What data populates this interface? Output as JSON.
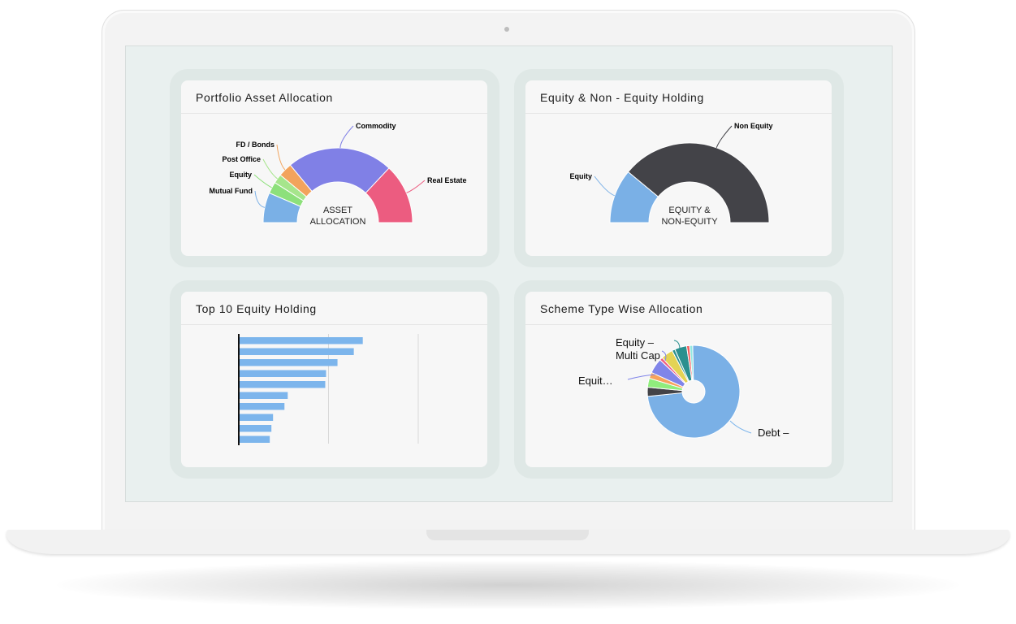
{
  "cards": [
    {
      "title": "Portfolio Asset Allocation",
      "center_label": [
        "ASSET",
        "ALLOCATION"
      ],
      "chart_data": {
        "type": "pie",
        "title": "Portfolio Asset Allocation",
        "labels": [
          "Mutual Fund",
          "Equity",
          "Post Office",
          "FD / Bonds",
          "Commodity",
          "Real Estate"
        ],
        "values": [
          13,
          5,
          4,
          6,
          46,
          26
        ],
        "colors": [
          "#7ab0e6",
          "#8de07b",
          "#a6e58c",
          "#f2a35c",
          "#8080e6",
          "#ec5c80"
        ]
      }
    },
    {
      "title": "Equity & Non - Equity Holding",
      "center_label": [
        "EQUITY &",
        "NON-EQUITY"
      ],
      "chart_data": {
        "type": "pie",
        "title": "Equity & Non - Equity Holding",
        "labels": [
          "Equity",
          "Non Equity"
        ],
        "values": [
          22,
          78
        ],
        "colors": [
          "#7ab0e6",
          "#434348"
        ]
      }
    },
    {
      "title": "Top 10 Equity Holding",
      "chart_data": {
        "type": "bar",
        "title": "Top 10 Equity Holding",
        "values": [
          152,
          141,
          121,
          107,
          106,
          60,
          56,
          42,
          40,
          38
        ],
        "xlim": [
          0,
          220
        ]
      }
    },
    {
      "title": "Scheme Type Wise Allocation",
      "labels_shown": [
        "Equity –",
        "Multi Cap",
        "Equit…",
        "Debt –"
      ],
      "chart_data": {
        "type": "pie",
        "title": "Scheme Type Wise Allocation",
        "values": [
          70,
          3,
          3,
          2,
          5,
          1,
          4,
          1,
          4,
          1,
          1
        ],
        "colors": [
          "#7ab0e6",
          "#434348",
          "#90ed7d",
          "#f7a35c",
          "#8085e9",
          "#f15c80",
          "#e4d354",
          "#2b908f",
          "#2b908f",
          "#f45b5b",
          "#91e8e1"
        ]
      }
    }
  ]
}
